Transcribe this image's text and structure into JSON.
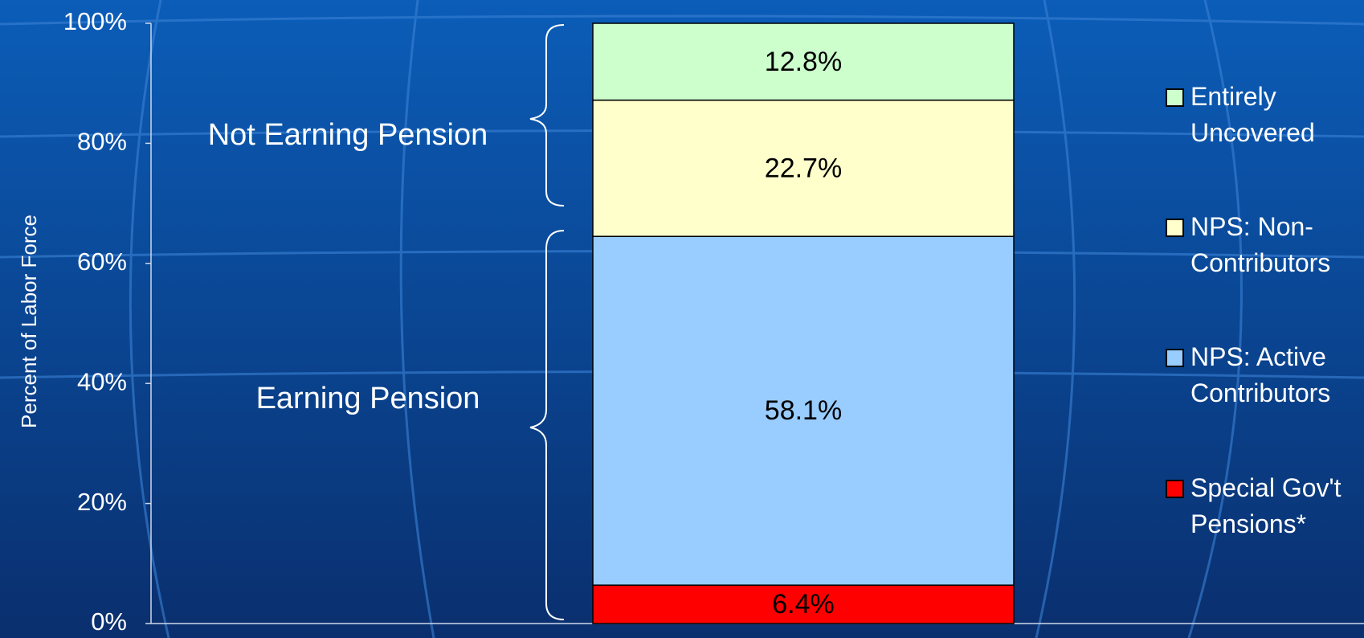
{
  "chart_data": {
    "type": "stacked_bar",
    "y_label": "Percent of Labor Force",
    "categories": [
      null
    ],
    "series": [
      {
        "name": "Special Gov't Pensions*",
        "color": "#ff0000",
        "values": [
          6.4
        ],
        "value_labels": [
          "6.4%"
        ]
      },
      {
        "name": "NPS: Active Contributors",
        "color": "#99ccff",
        "values": [
          58.1
        ],
        "value_labels": [
          "58.1%"
        ]
      },
      {
        "name": "NPS: Non-Contributors",
        "color": "#ffffcc",
        "values": [
          22.7
        ],
        "value_labels": [
          "22.7%"
        ]
      },
      {
        "name": "Entirely Uncovered",
        "color": "#ccffcc",
        "values": [
          12.8
        ],
        "value_labels": [
          "12.8%"
        ]
      }
    ],
    "annotations": [
      "Not Earning Pension",
      "Earning Pension"
    ],
    "ylim": [
      0,
      100
    ],
    "yticks": [
      {
        "value": 0,
        "label": "0%"
      },
      {
        "value": 20,
        "label": "20%"
      },
      {
        "value": 40,
        "label": "40%"
      },
      {
        "value": 60,
        "label": "60%"
      },
      {
        "value": 80,
        "label": "80%"
      },
      {
        "value": 100,
        "label": "100%"
      }
    ],
    "legend": "right"
  }
}
